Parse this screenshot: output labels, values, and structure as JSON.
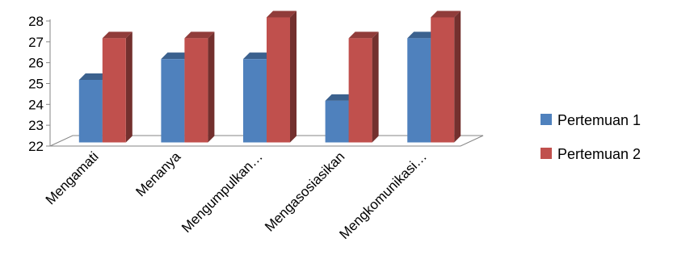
{
  "chart_data": {
    "type": "bar",
    "subtype": "3d-clustered-column",
    "title": "",
    "xlabel": "",
    "ylabel": "",
    "categories": [
      "Mengamati",
      "Menanya",
      "Mengumpulkan…",
      "Mengasosiasikan",
      "Mengkomunikasi…"
    ],
    "series": [
      {
        "name": "Pertemuan 1",
        "color": "#4F81BD",
        "values": [
          25,
          26,
          26,
          24,
          27
        ]
      },
      {
        "name": "Pertemuan 2",
        "color": "#C0504D",
        "values": [
          27,
          27,
          28,
          27,
          28
        ]
      }
    ],
    "ylim": [
      22,
      28
    ],
    "yticks": [
      "22",
      "23",
      "24",
      "25",
      "26",
      "27",
      "28"
    ],
    "grid": false,
    "legend_position": "right"
  }
}
